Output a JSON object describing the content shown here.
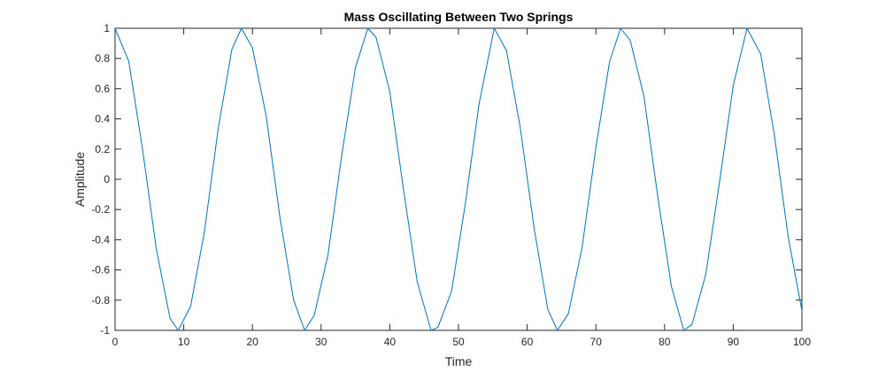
{
  "chart_data": {
    "type": "line",
    "title": "Mass Oscillating Between Two Springs",
    "xlabel": "Time",
    "ylabel": "Amplitude",
    "xlim": [
      0,
      100
    ],
    "ylim": [
      -1,
      1
    ],
    "xticks": [
      0,
      10,
      20,
      30,
      40,
      50,
      60,
      70,
      80,
      90,
      100
    ],
    "xtick_labels": [
      "0",
      "10",
      "20",
      "30",
      "40",
      "50",
      "60",
      "70",
      "80",
      "90",
      "100"
    ],
    "yticks": [
      1,
      0.8,
      0.6,
      0.4,
      0.2,
      0,
      -0.2,
      -0.4,
      -0.6,
      -0.8,
      -1
    ],
    "ytick_labels": [
      "1",
      "0.8",
      "0.6",
      "0.4",
      "0.2",
      "0",
      "-0.2",
      "-0.4",
      "-0.6",
      "-0.8",
      "-1"
    ],
    "grid": false,
    "line_color": "#0072BD",
    "axis_color": "#262626",
    "series": [
      {
        "x": [
          0,
          2,
          4,
          6,
          8,
          9.2,
          11,
          13,
          15,
          17,
          18.4,
          20,
          22,
          24,
          26,
          27.6,
          29,
          31,
          33,
          35,
          36.8,
          38,
          40,
          42,
          44,
          46,
          47,
          49,
          51,
          53,
          55.2,
          57,
          59,
          61,
          63,
          64.4,
          66,
          68,
          70,
          72,
          73.6,
          75,
          77,
          79,
          81,
          82.8,
          84,
          86,
          88,
          90,
          92,
          94,
          96,
          98,
          100
        ],
        "y": [
          1,
          0.78,
          0.2,
          -0.46,
          -0.92,
          -1,
          -0.84,
          -0.35,
          0.33,
          0.86,
          1,
          0.87,
          0.42,
          -0.25,
          -0.8,
          -1,
          -0.9,
          -0.5,
          0.16,
          0.74,
          1,
          0.94,
          0.58,
          -0.07,
          -0.68,
          -1,
          -0.98,
          -0.74,
          -0.16,
          0.5,
          1,
          0.85,
          0.34,
          -0.32,
          -0.86,
          -1,
          -0.89,
          -0.45,
          0.21,
          0.78,
          1,
          0.92,
          0.55,
          -0.11,
          -0.71,
          -1,
          -0.96,
          -0.63,
          -0.02,
          0.62,
          1,
          0.83,
          0.29,
          -0.38,
          -0.87
        ]
      }
    ]
  }
}
